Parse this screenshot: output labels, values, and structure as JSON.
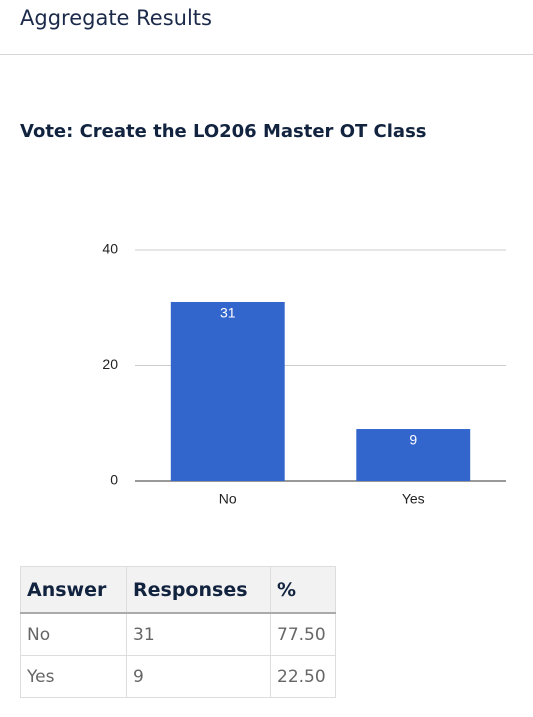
{
  "header": {
    "title": "Aggregate Results"
  },
  "chart_data": {
    "type": "bar",
    "title": "Vote: Create the LO206 Master OT Class",
    "categories": [
      "No",
      "Yes"
    ],
    "values": [
      31,
      9
    ],
    "color": "#3366cc",
    "ylim": [
      0,
      40
    ],
    "yticks": [
      0,
      20,
      40
    ],
    "grid": true
  },
  "table": {
    "columns": [
      "Answer",
      "Responses",
      "%"
    ],
    "rows": [
      [
        "No",
        31,
        "77.50"
      ],
      [
        "Yes",
        9,
        "22.50"
      ]
    ]
  }
}
